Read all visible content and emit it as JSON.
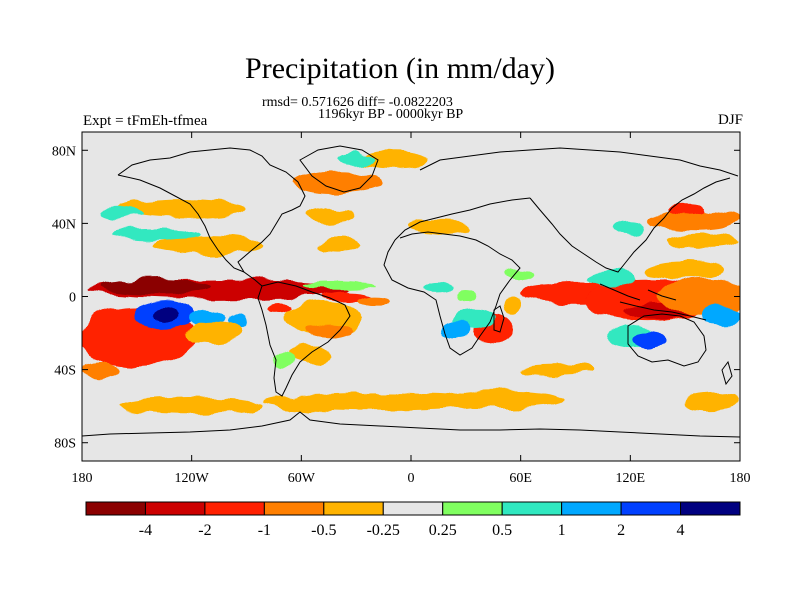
{
  "chart_data": {
    "type": "heatmap",
    "title": "Precipitation (in mm/day)",
    "stats_line": "rmsd= 0.571626 diff= -0.0822203",
    "period_line": "1196kyr BP - 0000kyr BP",
    "left_label": "Expt = tFmEh-tfmea",
    "right_label": "DJF",
    "x_ticks": [
      "180",
      "120W",
      "60W",
      "0",
      "60E",
      "120E",
      "180"
    ],
    "y_ticks": [
      "80N",
      "40N",
      "0",
      "40S",
      "80S"
    ],
    "xlim": [
      -180,
      180
    ],
    "ylim": [
      -90,
      90
    ],
    "colorbar": {
      "labels": [
        "-4",
        "-2",
        "-1",
        "-0.5",
        "-0.25",
        "0.25",
        "0.5",
        "1",
        "2",
        "4"
      ],
      "colors": [
        "#8b0000",
        "#cc0000",
        "#ff2000",
        "#ff7f00",
        "#ffb300",
        "#e6e6e6",
        "#80ff60",
        "#30e8c0",
        "#00a8ff",
        "#0040ff",
        "#000080"
      ]
    },
    "anomaly_regions": [
      {
        "lon": -105,
        "lat": 4,
        "rlon": 72,
        "rlat": 5,
        "level": 1
      },
      {
        "lon": -140,
        "lat": 5,
        "rlon": 30,
        "rlat": 4,
        "level": 0
      },
      {
        "lon": -150,
        "lat": -22,
        "rlon": 32,
        "rlat": 16,
        "level": 2
      },
      {
        "lon": -135,
        "lat": -10,
        "rlon": 16,
        "rlat": 8,
        "level": 9
      },
      {
        "lon": -135,
        "lat": -10,
        "rlon": 8,
        "rlat": 4,
        "level": 10
      },
      {
        "lon": -112,
        "lat": -12,
        "rlon": 10,
        "rlat": 5,
        "level": 8
      },
      {
        "lon": -95,
        "lat": -14,
        "rlon": 6,
        "rlat": 4,
        "level": 8
      },
      {
        "lon": -108,
        "lat": -20,
        "rlon": 15,
        "rlat": 6,
        "level": 4
      },
      {
        "lon": -72,
        "lat": -6,
        "rlon": 6,
        "rlat": 3,
        "level": 2
      },
      {
        "lon": -48,
        "lat": -12,
        "rlon": 22,
        "rlat": 9,
        "level": 4
      },
      {
        "lon": -45,
        "lat": -18,
        "rlon": 12,
        "rlat": 4,
        "level": 3
      },
      {
        "lon": -35,
        "lat": 0,
        "rlon": 14,
        "rlat": 3,
        "level": 2
      },
      {
        "lon": -20,
        "lat": -2,
        "rlon": 8,
        "rlat": 3,
        "level": 3
      },
      {
        "lon": -40,
        "lat": 6,
        "rlon": 20,
        "rlat": 2,
        "level": 6
      },
      {
        "lon": -55,
        "lat": -32,
        "rlon": 12,
        "rlat": 5,
        "level": 4
      },
      {
        "lon": -110,
        "lat": 28,
        "rlon": 30,
        "rlat": 5,
        "level": 4
      },
      {
        "lon": -140,
        "lat": 34,
        "rlon": 24,
        "rlat": 3,
        "level": 7
      },
      {
        "lon": -125,
        "lat": 48,
        "rlon": 35,
        "rlat": 5,
        "level": 4
      },
      {
        "lon": -40,
        "lat": 62,
        "rlon": 25,
        "rlat": 6,
        "level": 3
      },
      {
        "lon": -10,
        "lat": 75,
        "rlon": 18,
        "rlat": 5,
        "level": 4
      },
      {
        "lon": -30,
        "lat": 75,
        "rlon": 10,
        "rlat": 3,
        "level": 7
      },
      {
        "lon": -45,
        "lat": 44,
        "rlon": 14,
        "rlat": 4,
        "level": 4
      },
      {
        "lon": -40,
        "lat": 28,
        "rlon": 12,
        "rlat": 4,
        "level": 4
      },
      {
        "lon": 15,
        "lat": 38,
        "rlon": 18,
        "rlat": 4,
        "level": 4
      },
      {
        "lon": -20,
        "lat": -58,
        "rlon": 60,
        "rlat": 5,
        "level": 4
      },
      {
        "lon": -120,
        "lat": -60,
        "rlon": 40,
        "rlat": 5,
        "level": 4
      },
      {
        "lon": 50,
        "lat": -56,
        "rlon": 35,
        "rlat": 5,
        "level": 4
      },
      {
        "lon": 165,
        "lat": -58,
        "rlon": 15,
        "rlat": 5,
        "level": 4
      },
      {
        "lon": 90,
        "lat": 2,
        "rlon": 30,
        "rlat": 6,
        "level": 2
      },
      {
        "lon": 130,
        "lat": -2,
        "rlon": 35,
        "rlat": 12,
        "level": 2
      },
      {
        "lon": 135,
        "lat": -8,
        "rlon": 18,
        "rlat": 5,
        "level": 1
      },
      {
        "lon": 160,
        "lat": 0,
        "rlon": 25,
        "rlat": 10,
        "level": 3
      },
      {
        "lon": 110,
        "lat": 10,
        "rlon": 14,
        "rlat": 4,
        "level": 7
      },
      {
        "lon": 150,
        "lat": 15,
        "rlon": 22,
        "rlat": 5,
        "level": 4
      },
      {
        "lon": 170,
        "lat": -10,
        "rlon": 10,
        "rlat": 5,
        "level": 8
      },
      {
        "lon": 45,
        "lat": -18,
        "rlon": 10,
        "rlat": 8,
        "level": 2
      },
      {
        "lon": 35,
        "lat": -12,
        "rlon": 12,
        "rlat": 5,
        "level": 7
      },
      {
        "lon": 25,
        "lat": -18,
        "rlon": 8,
        "rlat": 5,
        "level": 8
      },
      {
        "lon": 55,
        "lat": -5,
        "rlon": 6,
        "rlat": 5,
        "level": 4
      },
      {
        "lon": 120,
        "lat": -22,
        "rlon": 12,
        "rlat": 6,
        "level": 7
      },
      {
        "lon": 130,
        "lat": -24,
        "rlon": 8,
        "rlat": 4,
        "level": 9
      },
      {
        "lon": 155,
        "lat": 42,
        "rlon": 25,
        "rlat": 6,
        "level": 3
      },
      {
        "lon": 150,
        "lat": 48,
        "rlon": 10,
        "rlat": 3,
        "level": 2
      },
      {
        "lon": 160,
        "lat": 30,
        "rlon": 20,
        "rlat": 4,
        "level": 4
      },
      {
        "lon": 120,
        "lat": 38,
        "rlon": 8,
        "rlat": 4,
        "level": 7
      },
      {
        "lon": 15,
        "lat": 5,
        "rlon": 8,
        "rlat": 3,
        "level": 7
      },
      {
        "lon": 60,
        "lat": 12,
        "rlon": 8,
        "rlat": 3,
        "level": 6
      },
      {
        "lon": -70,
        "lat": -35,
        "rlon": 6,
        "rlat": 4,
        "level": 6
      },
      {
        "lon": 30,
        "lat": 0,
        "rlon": 6,
        "rlat": 3,
        "level": 6
      },
      {
        "lon": -160,
        "lat": 45,
        "rlon": 12,
        "rlat": 3,
        "level": 7
      },
      {
        "lon": -170,
        "lat": -40,
        "rlon": 10,
        "rlat": 5,
        "level": 3
      },
      {
        "lon": 80,
        "lat": -40,
        "rlon": 20,
        "rlat": 3,
        "level": 4
      }
    ]
  }
}
